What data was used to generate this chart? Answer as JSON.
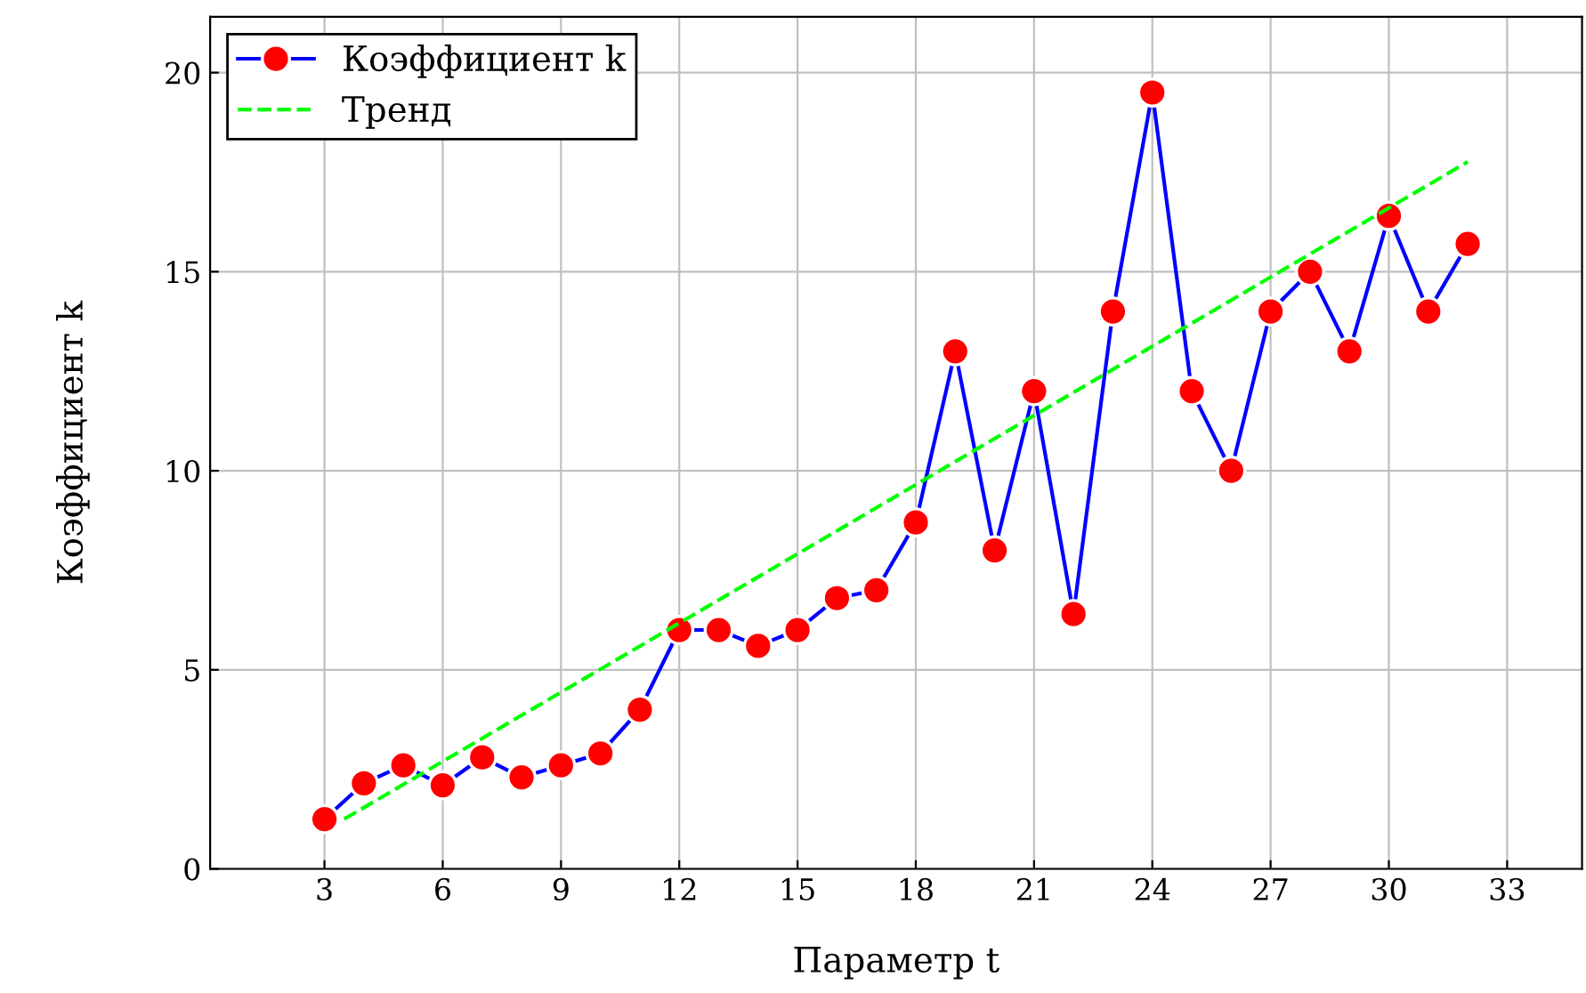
{
  "chart_data": {
    "type": "line",
    "xlabel": "Параметр t",
    "ylabel": "Коэффициент k",
    "series": [
      {
        "name": "Коэффициент k",
        "color": "#0000ff",
        "marker": "circle",
        "line_style": "solid",
        "x": [
          3,
          4,
          5,
          6,
          7,
          8,
          9,
          10,
          11,
          12,
          13,
          14,
          15,
          16,
          17,
          18,
          19,
          20,
          21,
          22,
          23,
          24,
          25,
          26,
          27,
          28,
          29,
          30,
          31,
          32
        ],
        "values": [
          1.25,
          2.15,
          2.6,
          2.1,
          2.8,
          2.3,
          2.6,
          2.9,
          4.0,
          6.0,
          6.0,
          5.6,
          6.0,
          6.8,
          7.0,
          8.7,
          13.0,
          8.0,
          12.0,
          6.4,
          14.0,
          19.5,
          12.0,
          10.0,
          14.0,
          15.0,
          13.0,
          16.4,
          14.0,
          15.7
        ]
      },
      {
        "name": "Тренд",
        "color": "#00ff00",
        "marker": "none",
        "line_style": "dashed",
        "x": [
          3.5,
          32
        ],
        "values": [
          1.25,
          17.76
        ]
      }
    ],
    "xlim": [
      0.1,
      34.9
    ],
    "ylim": [
      0,
      21.4
    ],
    "xticks": [
      3,
      6,
      9,
      12,
      15,
      18,
      21,
      24,
      27,
      30,
      33
    ],
    "yticks": [
      0,
      5,
      10,
      15,
      20
    ],
    "grid": true,
    "legend": "top left"
  }
}
